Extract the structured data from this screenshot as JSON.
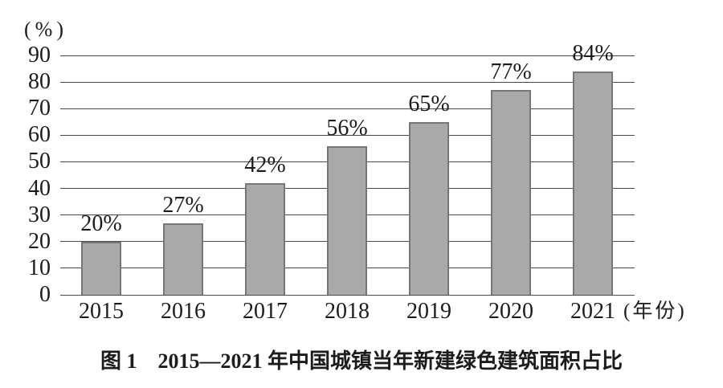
{
  "figure": {
    "caption": "图 1　2015—2021 年中国城镇当年新建绿色建筑面积占比"
  },
  "chart_data": {
    "type": "bar",
    "title": "图1 2015—2021年中国城镇当年新建绿色建筑面积占比",
    "categories": [
      "2015",
      "2016",
      "2017",
      "2018",
      "2019",
      "2020",
      "2021"
    ],
    "values": [
      20,
      27,
      42,
      56,
      65,
      77,
      84
    ],
    "bar_labels": [
      "20%",
      "27%",
      "42%",
      "56%",
      "65%",
      "77%",
      "84%"
    ],
    "y_ticks": [
      0,
      10,
      20,
      30,
      40,
      50,
      60,
      70,
      80,
      90
    ],
    "ylim": [
      0,
      90
    ],
    "y_unit_label": "(%)",
    "x_unit_label": "(年份)",
    "grid": true,
    "legend_position": "none",
    "colors": {
      "bar_fill": "#a9a9a9",
      "bar_border": "#777777",
      "gridline": "#4a4a4a",
      "text": "#1c1c1c"
    }
  }
}
